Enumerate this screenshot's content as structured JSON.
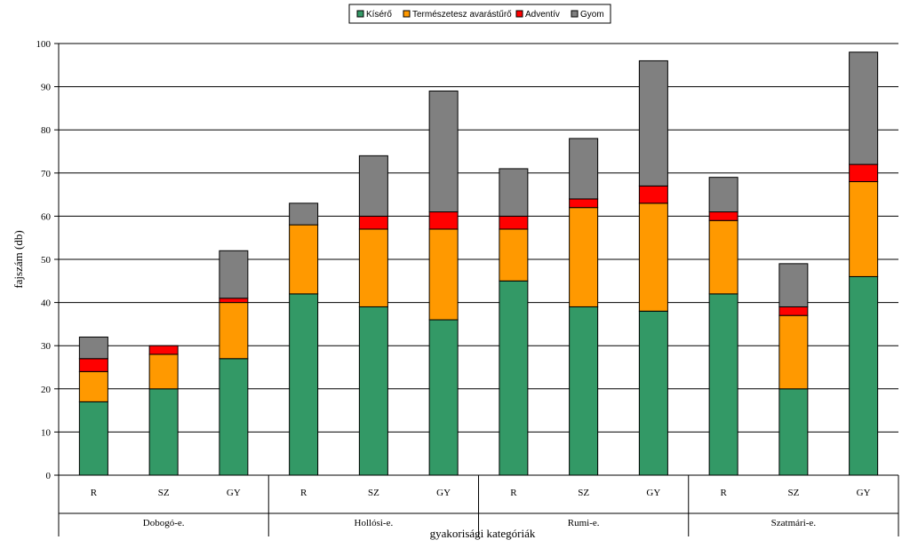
{
  "chart_data": {
    "type": "bar",
    "stacked": true,
    "title": "",
    "xlabel": "gyakorisági kategóriák",
    "ylabel": "fajszám (db)",
    "ylim": [
      0,
      100
    ],
    "yticks": [
      0,
      10,
      20,
      30,
      40,
      50,
      60,
      70,
      80,
      90,
      100
    ],
    "grid": true,
    "legend_position": "top-center",
    "groups": [
      "Dobogó-e.",
      "Hollósi-e.",
      "Rumi-e.",
      "Szatmári-e."
    ],
    "categories": [
      "R",
      "SZ",
      "GY",
      "R",
      "SZ",
      "GY",
      "R",
      "SZ",
      "GY",
      "R",
      "SZ",
      "GY"
    ],
    "series": [
      {
        "name": "Kísérő",
        "color": "#339966",
        "values": [
          17,
          20,
          27,
          42,
          39,
          36,
          45,
          39,
          38,
          42,
          20,
          46
        ]
      },
      {
        "name": "Természetesz avarástűrő",
        "color": "#ff9900",
        "values": [
          7,
          8,
          13,
          16,
          18,
          21,
          12,
          23,
          25,
          17,
          17,
          22
        ]
      },
      {
        "name": "Adventív",
        "color": "#ff0000",
        "values": [
          3,
          2,
          1,
          0,
          3,
          4,
          3,
          2,
          4,
          2,
          2,
          4
        ]
      },
      {
        "name": "Gyom",
        "color": "#808080",
        "values": [
          5,
          0,
          11,
          5,
          14,
          28,
          11,
          14,
          29,
          8,
          10,
          26
        ]
      }
    ]
  }
}
